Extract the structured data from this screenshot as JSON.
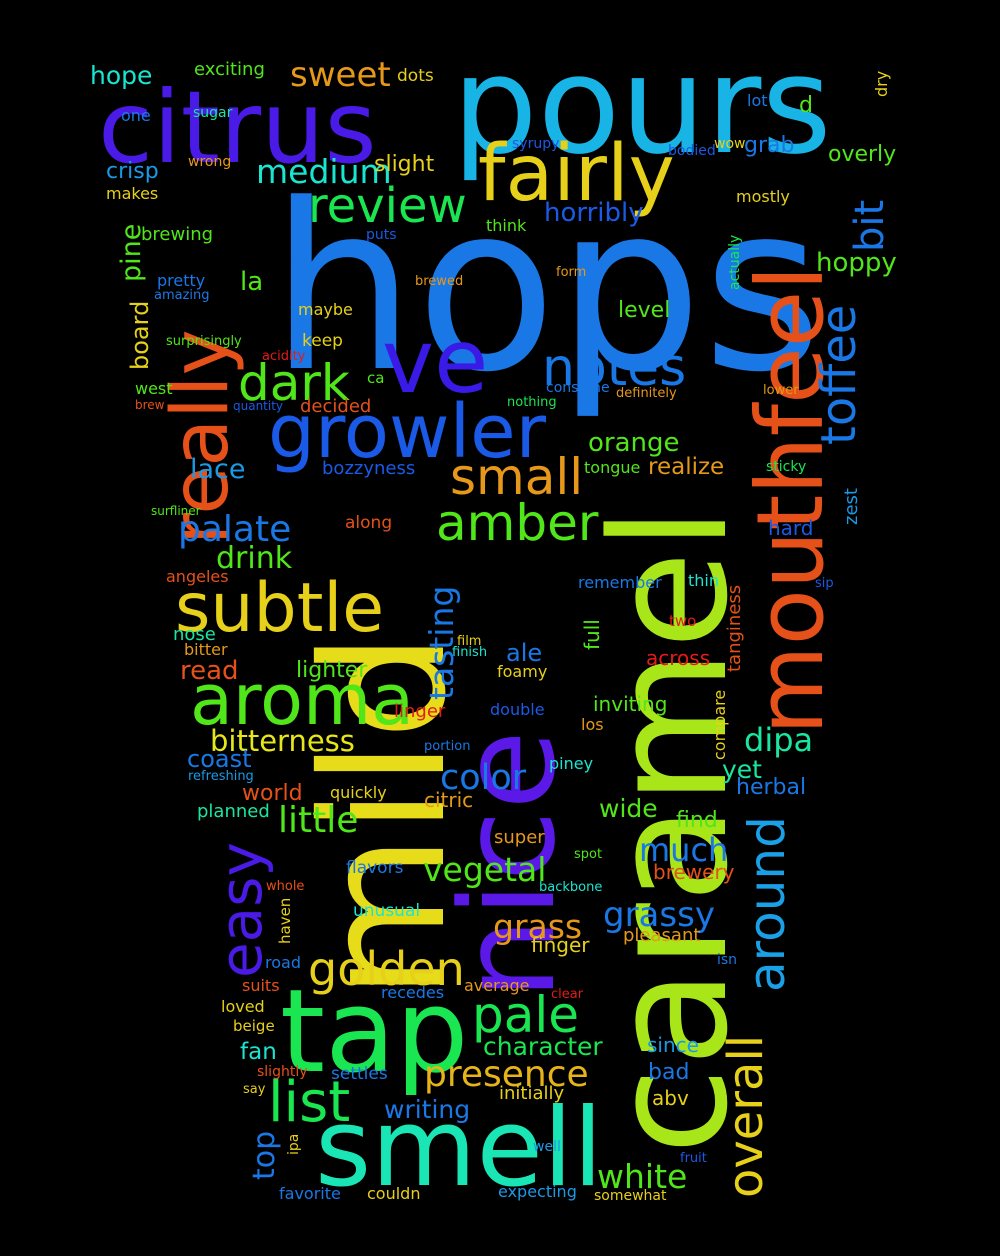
{
  "background": "#000000",
  "words": [
    {
      "text": "hops",
      "color": "#1a78e6"
    },
    {
      "text": "caramel",
      "color": "#a8e61a"
    },
    {
      "text": "mild",
      "color": "#e6dc19"
    },
    {
      "text": "pours",
      "color": "#19b4e6"
    },
    {
      "text": "citrus",
      "color": "#4a1ae6"
    },
    {
      "text": "tap",
      "color": "#19e651"
    },
    {
      "text": "nice",
      "color": "#5a19e6"
    },
    {
      "text": "mouthfeel",
      "color": "#e65119"
    },
    {
      "text": "smell",
      "color": "#19e6b4"
    },
    {
      "text": "really",
      "color": "#e65119"
    },
    {
      "text": "ve",
      "color": "#3a1ae6"
    },
    {
      "text": "fairly",
      "color": "#e6d019"
    },
    {
      "text": "growler",
      "color": "#1a5ae6"
    },
    {
      "text": "aroma",
      "color": "#51e619"
    },
    {
      "text": "subtle",
      "color": "#e6d019"
    },
    {
      "text": "easy",
      "color": "#4a1ae6"
    },
    {
      "text": "overall",
      "color": "#e6d019"
    },
    {
      "text": "around",
      "color": "#19a0e6"
    },
    {
      "text": "toffee",
      "color": "#1a78e6"
    },
    {
      "text": "review",
      "color": "#19e651"
    },
    {
      "text": "notes",
      "color": "#1a78e6"
    },
    {
      "text": "dark",
      "color": "#51e619"
    },
    {
      "text": "small",
      "color": "#e6981a"
    },
    {
      "text": "amber",
      "color": "#51e619"
    },
    {
      "text": "golden",
      "color": "#e6d019"
    },
    {
      "text": "pale",
      "color": "#19e651"
    },
    {
      "text": "list",
      "color": "#19e651"
    },
    {
      "text": "presence",
      "color": "#e6b419"
    },
    {
      "text": "bit",
      "color": "#1a78e6"
    },
    {
      "text": "sweet",
      "color": "#e6981a"
    },
    {
      "text": "medium",
      "color": "#19e6d0"
    },
    {
      "text": "palate",
      "color": "#1a78e6"
    },
    {
      "text": "little",
      "color": "#51e619"
    },
    {
      "text": "bitterness",
      "color": "#e6e619"
    },
    {
      "text": "color",
      "color": "#1a78e6"
    },
    {
      "text": "vegetal",
      "color": "#51e619"
    },
    {
      "text": "grassy",
      "color": "#1a78e6"
    },
    {
      "text": "grass",
      "color": "#e6981a"
    },
    {
      "text": "dipa",
      "color": "#19e6a0"
    },
    {
      "text": "much",
      "color": "#1a78e6"
    },
    {
      "text": "white",
      "color": "#51e619"
    },
    {
      "text": "character",
      "color": "#19e651"
    },
    {
      "text": "writing",
      "color": "#1a78e6"
    },
    {
      "text": "tasting",
      "color": "#1a78e6"
    },
    {
      "text": "drink",
      "color": "#51e619"
    },
    {
      "text": "lace",
      "color": "#1a9ae6"
    },
    {
      "text": "orange",
      "color": "#51e619"
    },
    {
      "text": "realize",
      "color": "#e6981a"
    },
    {
      "text": "horribly",
      "color": "#1a5ae6"
    },
    {
      "text": "hoppy",
      "color": "#51e619"
    },
    {
      "text": "pine",
      "color": "#51e619"
    },
    {
      "text": "board",
      "color": "#e6d019"
    },
    {
      "text": "top",
      "color": "#1a78e6"
    },
    {
      "text": "zest",
      "color": "#1a9ae6"
    },
    {
      "text": "tanginess",
      "color": "#e65119"
    },
    {
      "text": "compare",
      "color": "#e6d019"
    },
    {
      "text": "hope",
      "color": "#19e6d0"
    },
    {
      "text": "exciting",
      "color": "#51e619"
    },
    {
      "text": "dots",
      "color": "#e6d019"
    },
    {
      "text": "dry",
      "color": "#e6d019"
    },
    {
      "text": "one",
      "color": "#1a78e6"
    },
    {
      "text": "sugar",
      "color": "#19e6a0"
    },
    {
      "text": "lot",
      "color": "#1a78e6"
    },
    {
      "text": "d",
      "color": "#51e619"
    },
    {
      "text": "wrong",
      "color": "#e6981a"
    },
    {
      "text": "syrupy",
      "color": "#1a5ae6"
    },
    {
      "text": "bodied",
      "color": "#1a5ae6"
    },
    {
      "text": "wow",
      "color": "#e6d019"
    },
    {
      "text": "grab",
      "color": "#1a78e6"
    },
    {
      "text": "overly",
      "color": "#51e619"
    },
    {
      "text": "slight",
      "color": "#e6d019"
    },
    {
      "text": "crisp",
      "color": "#1a9ae6"
    },
    {
      "text": "makes",
      "color": "#e6d019"
    },
    {
      "text": "mostly",
      "color": "#e6d019"
    },
    {
      "text": "brewing",
      "color": "#51e619"
    },
    {
      "text": "think",
      "color": "#51e619"
    },
    {
      "text": "puts",
      "color": "#1a5ae6"
    },
    {
      "text": "actually",
      "color": "#19e651"
    },
    {
      "text": "la",
      "color": "#51e619"
    },
    {
      "text": "pretty",
      "color": "#1a78e6"
    },
    {
      "text": "amazing",
      "color": "#1a78e6"
    },
    {
      "text": "form",
      "color": "#e6981a"
    },
    {
      "text": "brewed",
      "color": "#e6981a"
    },
    {
      "text": "maybe",
      "color": "#e6d019"
    },
    {
      "text": "level",
      "color": "#51e619"
    },
    {
      "text": "keep",
      "color": "#e6d019"
    },
    {
      "text": "surprisingly",
      "color": "#51e619"
    },
    {
      "text": "acidity",
      "color": "#e61a1a"
    },
    {
      "text": "ca",
      "color": "#51e619"
    },
    {
      "text": "consume",
      "color": "#1a78e6"
    },
    {
      "text": "lower",
      "color": "#e6981a"
    },
    {
      "text": "west",
      "color": "#51e619"
    },
    {
      "text": "brew",
      "color": "#e65119"
    },
    {
      "text": "quantity",
      "color": "#1a5ae6"
    },
    {
      "text": "decided",
      "color": "#e65119"
    },
    {
      "text": "nothing",
      "color": "#19e651"
    },
    {
      "text": "definitely",
      "color": "#e6981a"
    },
    {
      "text": "bozzyness",
      "color": "#1a5ae6"
    },
    {
      "text": "tongue",
      "color": "#51e619"
    },
    {
      "text": "sticky",
      "color": "#19e651"
    },
    {
      "text": "surfliner",
      "color": "#51e619"
    },
    {
      "text": "along",
      "color": "#e65119"
    },
    {
      "text": "hard",
      "color": "#1a5ae6"
    },
    {
      "text": "angeles",
      "color": "#e65119"
    },
    {
      "text": "remember",
      "color": "#1a78e6"
    },
    {
      "text": "thin",
      "color": "#19e6d0"
    },
    {
      "text": "sip",
      "color": "#1a5ae6"
    },
    {
      "text": "full",
      "color": "#51e619"
    },
    {
      "text": "two",
      "color": "#e61a1a"
    },
    {
      "text": "nose",
      "color": "#19e6a0"
    },
    {
      "text": "bitter",
      "color": "#e6981a"
    },
    {
      "text": "film",
      "color": "#e6d019"
    },
    {
      "text": "finish",
      "color": "#19e6d0"
    },
    {
      "text": "ale",
      "color": "#1a78e6"
    },
    {
      "text": "across",
      "color": "#e61a1a"
    },
    {
      "text": "read",
      "color": "#e65119"
    },
    {
      "text": "lighter",
      "color": "#51e619"
    },
    {
      "text": "foamy",
      "color": "#e6d019"
    },
    {
      "text": "linger",
      "color": "#e61a1a"
    },
    {
      "text": "double",
      "color": "#1a5ae6"
    },
    {
      "text": "inviting",
      "color": "#51e619"
    },
    {
      "text": "los",
      "color": "#e6981a"
    },
    {
      "text": "portion",
      "color": "#1a78e6"
    },
    {
      "text": "coast",
      "color": "#1a78e6"
    },
    {
      "text": "refreshing",
      "color": "#1a9ae6"
    },
    {
      "text": "piney",
      "color": "#19e6d0"
    },
    {
      "text": "yet",
      "color": "#19e6a0"
    },
    {
      "text": "herbal",
      "color": "#1a78e6"
    },
    {
      "text": "world",
      "color": "#e65119"
    },
    {
      "text": "quickly",
      "color": "#e6d019"
    },
    {
      "text": "citric",
      "color": "#e6981a"
    },
    {
      "text": "planned",
      "color": "#19e6a0"
    },
    {
      "text": "wide",
      "color": "#51e619"
    },
    {
      "text": "find",
      "color": "#51e619"
    },
    {
      "text": "super",
      "color": "#e6981a"
    },
    {
      "text": "spot",
      "color": "#51e619"
    },
    {
      "text": "flavors",
      "color": "#1a78e6"
    },
    {
      "text": "brewery",
      "color": "#e65119"
    },
    {
      "text": "whole",
      "color": "#e65119"
    },
    {
      "text": "backbone",
      "color": "#19e6d0"
    },
    {
      "text": "haven",
      "color": "#e6d019"
    },
    {
      "text": "unusual",
      "color": "#19e6d0"
    },
    {
      "text": "finger",
      "color": "#e6d019"
    },
    {
      "text": "pleasant",
      "color": "#e6981a"
    },
    {
      "text": "road",
      "color": "#1a78e6"
    },
    {
      "text": "isn",
      "color": "#1a78e6"
    },
    {
      "text": "suits",
      "color": "#e65119"
    },
    {
      "text": "recedes",
      "color": "#1a78e6"
    },
    {
      "text": "average",
      "color": "#e6981a"
    },
    {
      "text": "clear",
      "color": "#e61a1a"
    },
    {
      "text": "loved",
      "color": "#e6d019"
    },
    {
      "text": "beige",
      "color": "#e6d019"
    },
    {
      "text": "fan",
      "color": "#19e6d0"
    },
    {
      "text": "since",
      "color": "#1a9ae6"
    },
    {
      "text": "bad",
      "color": "#1a78e6"
    },
    {
      "text": "slightly",
      "color": "#e65119"
    },
    {
      "text": "settles",
      "color": "#1a78e6"
    },
    {
      "text": "initially",
      "color": "#e6d019"
    },
    {
      "text": "say",
      "color": "#e6d019"
    },
    {
      "text": "abv",
      "color": "#e6d019"
    },
    {
      "text": "ipa",
      "color": "#e6d019"
    },
    {
      "text": "well",
      "color": "#1a9ae6"
    },
    {
      "text": "fruit",
      "color": "#1a5ae6"
    },
    {
      "text": "favorite",
      "color": "#1a78e6"
    },
    {
      "text": "couldn",
      "color": "#e6d019"
    },
    {
      "text": "expecting",
      "color": "#1a9ae6"
    },
    {
      "text": "somewhat",
      "color": "#e6d019"
    }
  ]
}
